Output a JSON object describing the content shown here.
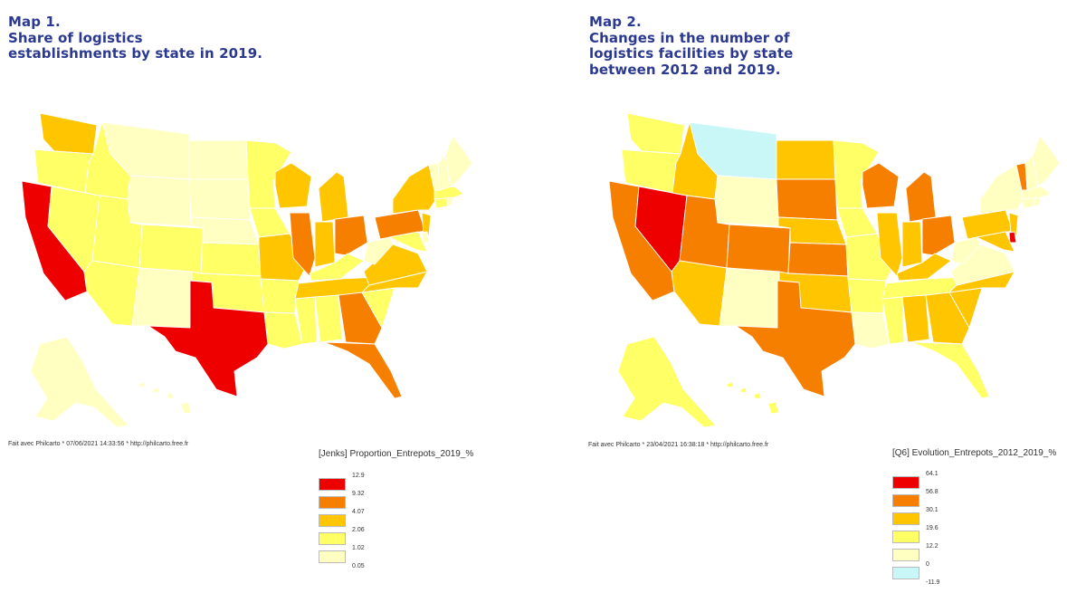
{
  "maps": [
    {
      "title_lines": [
        "Map 1.",
        "Share of logistics",
        "establishments by state in 2019."
      ],
      "credit": "Fait avec Philcarto * 07/06/2021 14:33:56 * http://philcarto.free.fr",
      "legend_title": "[Jenks] Proportion_Entrepots_2019_%",
      "legend_breaks": [
        "12.9",
        "9.32",
        "4.07",
        "2.06",
        "1.02",
        "0.05"
      ],
      "classes": [
        {
          "color": "#ee0000",
          "states": [
            "CA",
            "TX"
          ]
        },
        {
          "color": "#f77f00",
          "states": [
            "IL",
            "OH",
            "PA",
            "FL",
            "GA"
          ]
        },
        {
          "color": "#ffc600",
          "states": [
            "WA",
            "WI",
            "MI",
            "IN",
            "MO",
            "TN",
            "NC",
            "VA",
            "NY",
            "NJ"
          ]
        },
        {
          "color": "#ffff66",
          "states": [
            "OR",
            "NV",
            "AZ",
            "UT",
            "CO",
            "KS",
            "OK",
            "MN",
            "IA",
            "AR",
            "LA",
            "MS",
            "AL",
            "SC",
            "KY",
            "MD",
            "MA",
            "CT",
            "ID"
          ]
        },
        {
          "color": "#ffffc2",
          "states": [
            "MT",
            "WY",
            "ND",
            "SD",
            "NE",
            "NM",
            "WV",
            "ME",
            "NH",
            "VT",
            "RI",
            "DE",
            "AK",
            "HI"
          ]
        }
      ],
      "legend_colors": [
        "#ee0000",
        "#f77f00",
        "#ffc600",
        "#ffff66",
        "#ffffc2"
      ]
    },
    {
      "title_lines": [
        "Map 2.",
        "Changes in the number of",
        "logistics facilities by state",
        "between 2012 and 2019."
      ],
      "credit": "Fait avec Philcarto * 23/04/2021 16:38:18 * http://philcarto.free.fr",
      "legend_title": "[Q6] Evolution_Entrepots_2012_2019_%",
      "legend_breaks": [
        "64.1",
        "56.8",
        "30.1",
        "19.6",
        "12.2",
        "0",
        "-11.9"
      ],
      "classes": [
        {
          "color": "#ee0000",
          "states": [
            "NV",
            "DE"
          ]
        },
        {
          "color": "#f77f00",
          "states": [
            "CA",
            "TX",
            "UT",
            "CO",
            "KS",
            "SD",
            "WI",
            "MI",
            "OH",
            "VT"
          ]
        },
        {
          "color": "#ffc600",
          "states": [
            "ID",
            "AZ",
            "NE",
            "OK",
            "ND",
            "IL",
            "IN",
            "KY",
            "PA",
            "MD",
            "NJ",
            "AL",
            "GA",
            "SC",
            "NC"
          ]
        },
        {
          "color": "#ffff66",
          "states": [
            "OR",
            "MN",
            "IA",
            "MO",
            "AR",
            "TN",
            "MS",
            "FL",
            "WA",
            "AK",
            "HI"
          ]
        },
        {
          "color": "#ffffc2",
          "states": [
            "WY",
            "NM",
            "LA",
            "NY",
            "ME",
            "NH",
            "MA",
            "CT",
            "RI",
            "VA",
            "WV"
          ]
        },
        {
          "color": "#c9f7f7",
          "states": [
            "MT"
          ]
        }
      ],
      "legend_colors": [
        "#ee0000",
        "#f77f00",
        "#ffc600",
        "#ffff66",
        "#ffffc2",
        "#c9f7f7"
      ]
    }
  ]
}
